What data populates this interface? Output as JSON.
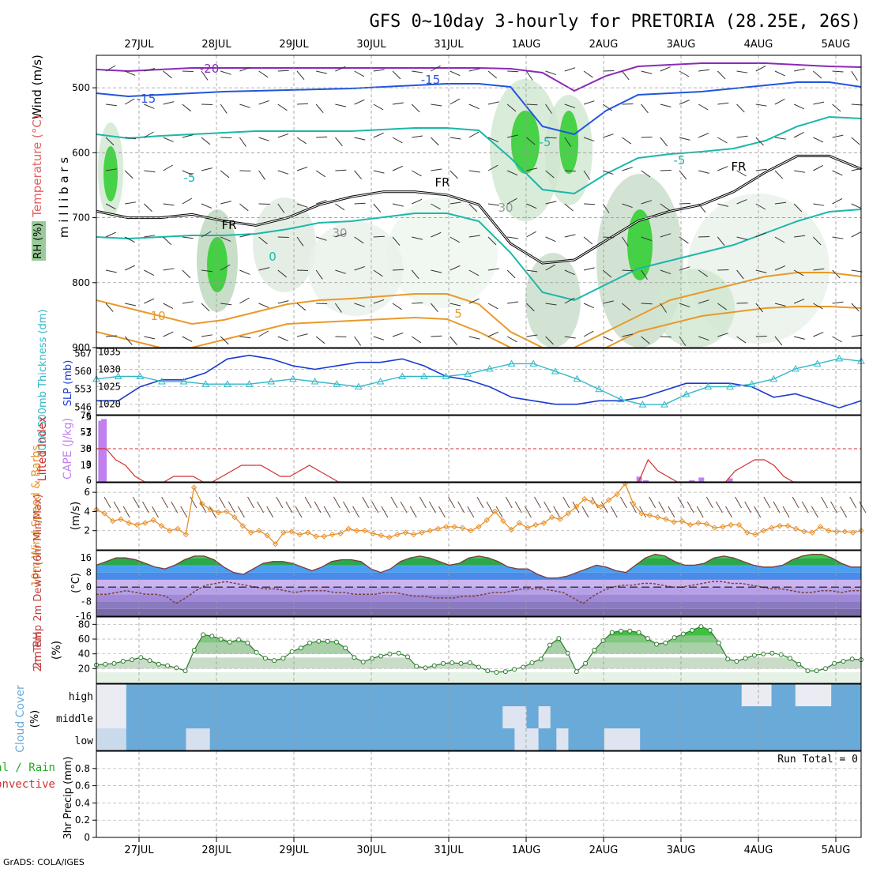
{
  "title": "GFS 0~10day 3-hourly for PRETORIA (28.25E, 26S)",
  "credit": "GrADS: COLA/IGES",
  "dates": [
    "27JUL",
    "28JUL",
    "29JUL",
    "30JUL",
    "31JUL",
    "1AUG",
    "2AUG",
    "3AUG",
    "4AUG",
    "5AUG"
  ],
  "colors": {
    "rh_green": "#22cc22",
    "rh_light": "#e6f2e6",
    "temp_orange": "#e89a2a",
    "temp_teal": "#1ab8a8",
    "temp_blue": "#2255dd",
    "temp_purple": "#8a2ab8",
    "freezing": "#000000",
    "slp": "#1a3ad0",
    "thickness": "#33b8c8",
    "cape": "#c080f0",
    "lifted": "#d03030",
    "wind10": "#e8902a",
    "barb": "#6a4a3a",
    "cloud": "#6aaad8",
    "dewpt": "#7a4040"
  },
  "chart_data": [
    {
      "type": "heatmap",
      "name": "upper-air",
      "ylabel": "millibars",
      "side_labels": {
        "rh": "RH (%)",
        "temperature": "Temperature (°C)",
        "wind": "Wind (m/s)"
      },
      "y_ticks": [
        500,
        600,
        700,
        800,
        900
      ],
      "ylim": [
        450,
        900
      ],
      "contour_labels": [
        "-20",
        "-15",
        "-15",
        "-5",
        "-5",
        "-5",
        "0",
        "5",
        "10",
        "30",
        "30",
        "FR",
        "FR",
        "FR"
      ],
      "freezing_level": [
        690,
        700,
        700,
        695,
        705,
        712,
        700,
        680,
        668,
        660,
        660,
        665,
        680,
        740,
        770,
        765,
        735,
        705,
        690,
        680,
        660,
        630,
        605,
        605,
        625
      ]
    },
    {
      "type": "line",
      "name": "slp-thickness",
      "left_label": "1000-500mb Thickness (dm)",
      "right_label": "SLP (mb)",
      "left_ticks": [
        546,
        553,
        560,
        567
      ],
      "right_ticks": [
        1020,
        1025,
        1030,
        1035
      ],
      "series": [
        {
          "name": "SLP",
          "axis": "right",
          "values": [
            1021,
            1021,
            1025,
            1027,
            1027,
            1029,
            1033,
            1034,
            1033,
            1031,
            1030,
            1031,
            1032,
            1032,
            1033,
            1031,
            1028,
            1027,
            1025,
            1022,
            1021,
            1020,
            1020,
            1021,
            1021,
            1022,
            1024,
            1026,
            1026,
            1026,
            1025,
            1022,
            1023,
            1021,
            1019,
            1021
          ]
        },
        {
          "name": "Thickness",
          "axis": "left",
          "values": [
            557,
            558,
            558,
            556,
            556,
            555,
            555,
            555,
            556,
            557,
            556,
            555,
            554,
            556,
            558,
            558,
            558,
            559,
            561,
            563,
            563,
            560,
            557,
            553,
            549,
            547,
            547,
            551,
            554,
            554,
            555,
            557,
            561,
            563,
            565,
            564
          ]
        }
      ]
    },
    {
      "type": "bar",
      "name": "cape-lifted",
      "left_label": "Lifted Index",
      "right_label": "CAPE (J/kg)",
      "left_ticks": [
        "-5",
        "-3",
        "0",
        "3",
        "6"
      ],
      "right_ticks": [
        19,
        38,
        57,
        76
      ],
      "cape_bars": [
        {
          "t": 0.2,
          "v": 70
        },
        {
          "t": 0.5,
          "v": 72
        },
        {
          "t": 56.5,
          "v": 6
        },
        {
          "t": 57.2,
          "v": 2
        },
        {
          "t": 62,
          "v": 2
        },
        {
          "t": 63,
          "v": 5
        },
        {
          "t": 66,
          "v": 4
        }
      ],
      "lifted_index": [
        0,
        0,
        2,
        3,
        5,
        6,
        6,
        6,
        5,
        5,
        5,
        6,
        6,
        5,
        4,
        3,
        3,
        3,
        4,
        5,
        5,
        4,
        3,
        4,
        5,
        6,
        6,
        6,
        6,
        6,
        6,
        6,
        6,
        6,
        6,
        6,
        6,
        6,
        6,
        6,
        6,
        6,
        6,
        6,
        6,
        6,
        6,
        6,
        6,
        6,
        6,
        6,
        6,
        6,
        6,
        6,
        6,
        2,
        4,
        5,
        6,
        6,
        6,
        6,
        6,
        6,
        4,
        3,
        2,
        2,
        3,
        5,
        6,
        6,
        6,
        6,
        6,
        6,
        6,
        6
      ]
    },
    {
      "type": "line",
      "name": "wind10m",
      "left_label": "10m Wind Speed & Barbs",
      "unit": "(m/s)",
      "y_ticks": [
        2,
        4,
        6
      ],
      "ylim": [
        0,
        7
      ],
      "values": [
        4.2,
        3.8,
        3.0,
        3.2,
        2.8,
        2.6,
        2.8,
        3.1,
        2.5,
        2.0,
        2.2,
        1.6,
        6.5,
        4.8,
        4.2,
        3.9,
        4.0,
        3.4,
        2.5,
        1.8,
        2.0,
        1.5,
        0.6,
        1.8,
        1.9,
        1.6,
        1.8,
        1.4,
        1.4,
        1.6,
        1.7,
        2.2,
        2.0,
        2.0,
        1.7,
        1.5,
        1.3,
        1.6,
        1.8,
        1.6,
        1.8,
        2.0,
        2.2,
        2.4,
        2.4,
        2.3,
        2.0,
        2.4,
        3.1,
        4.0,
        3.0,
        2.1,
        2.8,
        2.3,
        2.6,
        2.8,
        3.4,
        3.2,
        3.8,
        4.5,
        5.3,
        5.0,
        4.5,
        5.2,
        5.8,
        6.9,
        4.8,
        3.8,
        3.6,
        3.4,
        3.2,
        2.9,
        3.0,
        2.6,
        2.8,
        2.7,
        2.3,
        2.4,
        2.6,
        2.6,
        1.8,
        1.6,
        2.0,
        2.3,
        2.5,
        2.5,
        2.2,
        1.9,
        1.8,
        2.4,
        2.0,
        1.9,
        1.9,
        1.8,
        2.0
      ]
    },
    {
      "type": "area",
      "name": "temp-dewpt",
      "left_label": "2m Temp 2m DewPt (6hr Min/Max)",
      "unit": "(°C)",
      "y_ticks": [
        "16",
        "8",
        "0",
        "-8",
        "-16"
      ],
      "ylim": [
        -16,
        20
      ],
      "temperature": [
        12,
        14,
        16,
        16,
        15,
        13,
        11,
        10,
        12,
        15,
        17,
        17,
        15,
        11,
        8,
        7,
        10,
        13,
        14,
        14,
        13,
        11,
        9,
        11,
        14,
        15,
        15,
        14,
        10,
        8,
        10,
        14,
        16,
        17,
        16,
        14,
        12,
        13,
        16,
        17,
        16,
        14,
        11,
        10,
        10,
        7,
        5,
        5,
        6,
        8,
        10,
        12,
        11,
        9,
        8,
        12,
        16,
        18,
        17,
        14,
        12,
        12,
        13,
        16,
        17,
        16,
        14,
        12,
        11,
        11,
        12,
        15,
        17,
        18,
        18,
        16,
        13,
        11,
        11
      ],
      "dewpoint": [
        -4,
        -4,
        -3,
        -2,
        -3,
        -4,
        -4,
        -5,
        -9,
        -6,
        -2,
        1,
        2,
        3,
        2,
        1,
        0,
        -1,
        -1,
        -2,
        -3,
        -2,
        -2,
        -2,
        -3,
        -3,
        -4,
        -4,
        -4,
        -3,
        -3,
        -4,
        -5,
        -5,
        -6,
        -6,
        -6,
        -5,
        -5,
        -4,
        -3,
        -3,
        -2,
        -1,
        -1,
        -1,
        -2,
        -3,
        -6,
        -9,
        -5,
        -2,
        0,
        1,
        1,
        2,
        2,
        1,
        0,
        0,
        1,
        2,
        3,
        3,
        2,
        2,
        1,
        0,
        -1,
        -1,
        -2,
        -3,
        -3,
        -2,
        -2,
        -3,
        -2,
        -2
      ],
      "temp_bands": [
        -16,
        -12,
        -8,
        -4,
        0,
        4,
        8,
        12,
        16,
        20
      ]
    },
    {
      "type": "area",
      "name": "rh2m",
      "left_label": "2m RH",
      "unit": "(%)",
      "y_ticks": [
        20,
        40,
        60,
        80
      ],
      "ylim": [
        0,
        90
      ],
      "values": [
        25,
        26,
        27,
        30,
        32,
        35,
        31,
        26,
        24,
        21,
        17,
        45,
        66,
        64,
        60,
        56,
        59,
        55,
        42,
        34,
        31,
        34,
        43,
        48,
        55,
        57,
        57,
        56,
        48,
        35,
        29,
        34,
        37,
        40,
        41,
        36,
        23,
        21,
        24,
        27,
        28,
        27,
        28,
        22,
        17,
        15,
        16,
        19,
        22,
        28,
        33,
        52,
        61,
        41,
        16,
        27,
        45,
        58,
        69,
        71,
        71,
        69,
        61,
        53,
        55,
        62,
        67,
        72,
        77,
        72,
        55,
        33,
        30,
        34,
        38,
        40,
        41,
        39,
        34,
        26,
        17,
        17,
        20,
        27,
        30,
        33,
        32
      ]
    },
    {
      "type": "heatmap",
      "name": "cloud-cover",
      "left_label": "Cloud Cover",
      "unit": "(%)",
      "levels": [
        "high",
        "middle",
        "low"
      ],
      "patches": [
        {
          "level": "high",
          "t0": 0,
          "t1": 5,
          "opacity": 0.95
        },
        {
          "level": "middle",
          "t0": 0,
          "t1": 5,
          "opacity": 0.95
        },
        {
          "level": "low",
          "t0": 0,
          "t1": 5,
          "opacity": 0.7
        },
        {
          "level": "low",
          "t0": 15,
          "t1": 19,
          "opacity": 0.8
        },
        {
          "level": "middle",
          "t0": 68,
          "t1": 72,
          "opacity": 0.85
        },
        {
          "level": "middle",
          "t0": 74,
          "t1": 76,
          "opacity": 0.85
        },
        {
          "level": "low",
          "t0": 70,
          "t1": 74,
          "opacity": 0.85
        },
        {
          "level": "low",
          "t0": 77,
          "t1": 79,
          "opacity": 0.85
        },
        {
          "level": "low",
          "t0": 85,
          "t1": 91,
          "opacity": 0.85
        },
        {
          "level": "high",
          "t0": 108,
          "t1": 113,
          "opacity": 0.95
        },
        {
          "level": "high",
          "t0": 117,
          "t1": 123,
          "opacity": 0.95
        }
      ]
    },
    {
      "type": "line",
      "name": "precip",
      "left_label_a": "Total / Rain",
      "left_label_b": "Convective",
      "ylabel": "3hr Precip (mm)",
      "y_ticks": [
        0,
        0.2,
        0.4,
        0.6,
        0.8
      ],
      "ylim": [
        0,
        1
      ],
      "run_total": "Run Total = 0"
    }
  ]
}
